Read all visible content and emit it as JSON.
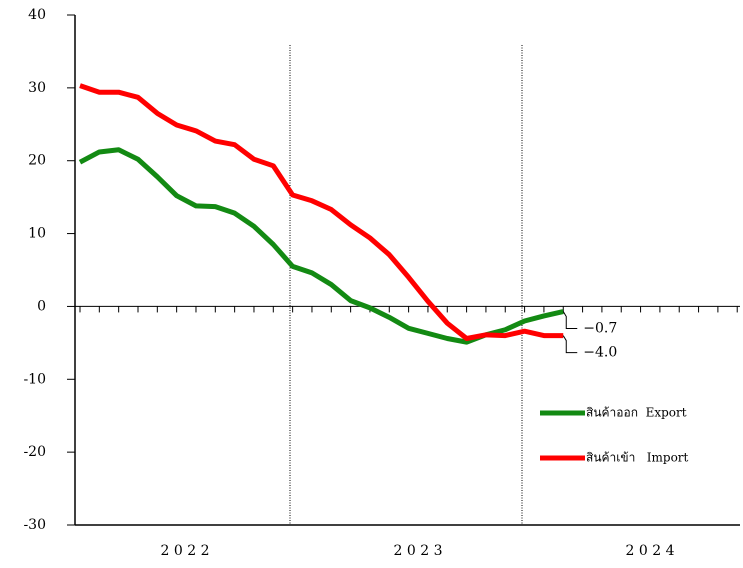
{
  "chart_data": {
    "type": "line",
    "categories": [
      null,
      null,
      null,
      null,
      null,
      null,
      null,
      null,
      null,
      null,
      null,
      null,
      null,
      null,
      null,
      null,
      null,
      null,
      null,
      null,
      null,
      null,
      null,
      null,
      null,
      null
    ],
    "year_labels": [
      "2 0 2 2",
      "2 0 2 3",
      "2 0 2 4"
    ],
    "series": [
      {
        "name": "สินค้าออก  Export",
        "color": "#138a13",
        "values": [
          19.8,
          21.2,
          21.5,
          20.2,
          17.8,
          15.2,
          13.8,
          13.7,
          12.8,
          11,
          8.5,
          5.5,
          4.6,
          3,
          0.8,
          -0.2,
          -1.5,
          -3,
          -3.7,
          -4.4,
          -4.9,
          -3.9,
          -3.2,
          -2,
          -1.3,
          -0.7
        ],
        "value_labels": [
          null,
          null,
          null,
          null,
          null,
          null,
          null,
          null,
          null,
          null,
          null,
          null,
          null,
          null,
          null,
          null,
          null,
          null,
          null,
          null,
          null,
          null,
          null,
          null,
          null,
          "−0.7"
        ]
      },
      {
        "name": "สินค้าเข้า   Import",
        "color": "#ff0000",
        "values": [
          30.3,
          29.4,
          29.4,
          28.7,
          26.5,
          24.9,
          24.1,
          22.7,
          22.2,
          20.2,
          19.3,
          15.3,
          14.5,
          13.3,
          11.2,
          9.4,
          7.1,
          4,
          0.7,
          -2.3,
          -4.4,
          -3.9,
          -4,
          -3.4,
          -4,
          -4
        ],
        "value_labels": [
          null,
          null,
          null,
          null,
          null,
          null,
          null,
          null,
          null,
          null,
          null,
          null,
          null,
          null,
          null,
          null,
          null,
          null,
          null,
          null,
          null,
          null,
          null,
          null,
          null,
          "−4.0"
        ]
      }
    ],
    "ylim": [
      -30,
      40
    ],
    "yticks": [
      -30,
      -20,
      -10,
      0,
      10,
      20,
      30,
      40
    ]
  }
}
